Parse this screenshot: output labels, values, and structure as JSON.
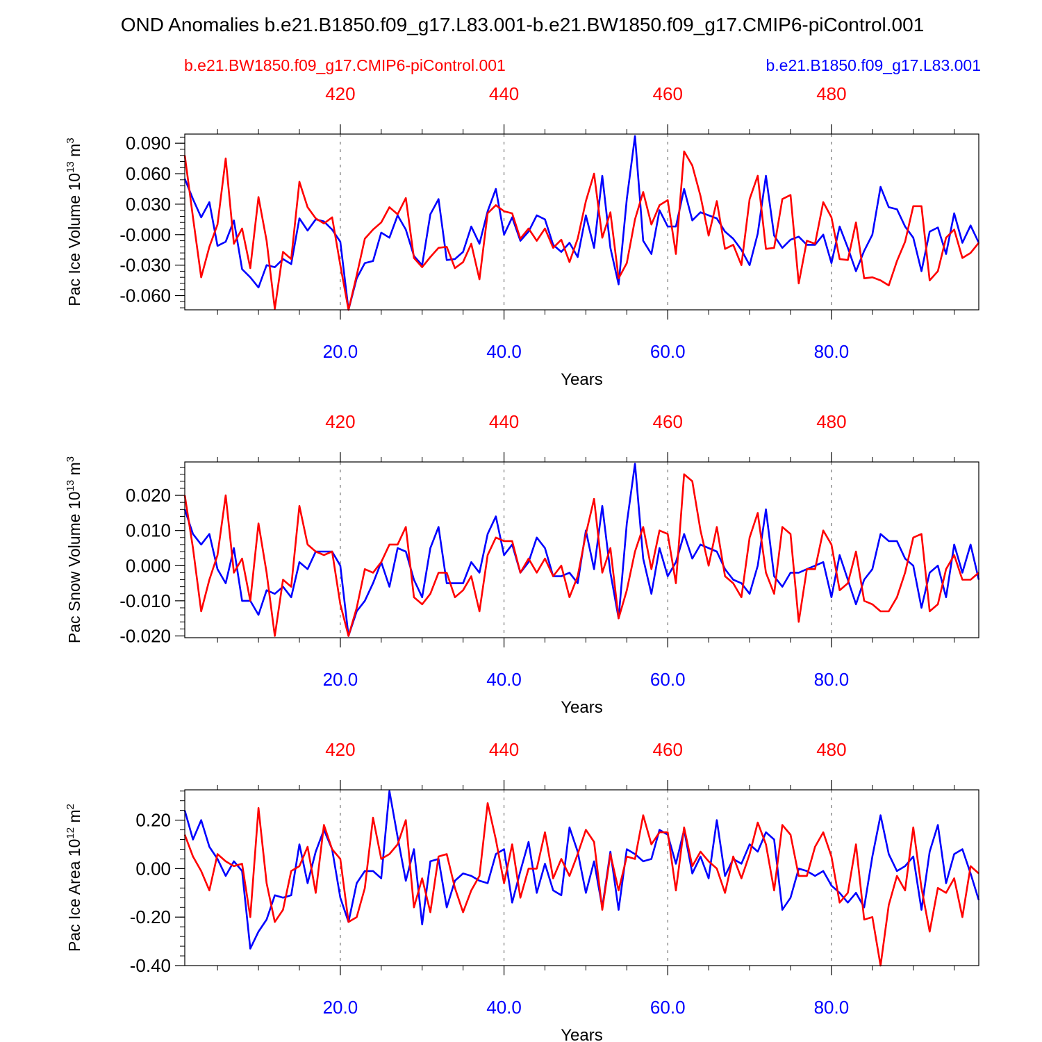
{
  "figure": {
    "title": "OND Anomalies b.e21.B1850.f09_g17.L83.001-b.e21.BW1850.f09_g17.CMIP6-piControl.001",
    "left_label": "b.e21.BW1850.f09_g17.CMIP6-piControl.001",
    "right_label": "b.e21.B1850.f09_g17.L83.001",
    "colors": {
      "blue": "#0000ff",
      "red": "#ff0000",
      "axis": "#000000"
    }
  },
  "chart_data": [
    {
      "type": "line",
      "title": "",
      "ylabel": "Pac Ice Volume",
      "yunit": {
        "pre": "10",
        "exp1": "13",
        "mid": " m",
        "exp2": "3"
      },
      "xlabel": "Years",
      "xlim": [
        1,
        98
      ],
      "ylim": [
        -0.074,
        0.099
      ],
      "x_ticks": [
        20,
        40,
        60,
        80
      ],
      "x_tick_labels": [
        "20.0",
        "40.0",
        "60.0",
        "80.0"
      ],
      "top_ticks": [
        20,
        40,
        60,
        80
      ],
      "top_tick_labels": [
        "420",
        "440",
        "460",
        "480"
      ],
      "y_ticks": [
        0.09,
        0.06,
        0.03,
        0.0,
        -0.03,
        -0.06
      ],
      "y_tick_labels": [
        "0.090",
        "0.060",
        "0.030",
        "-0.000",
        "-0.030",
        "-0.060"
      ],
      "grid": "dashed vertical at major x ticks",
      "series": [
        {
          "name": "b.e21.B1850.f09_g17.L83.001",
          "color": "#0000ff",
          "x_start": 1,
          "values": [
            0.055,
            0.035,
            0.017,
            0.032,
            -0.011,
            -0.007,
            0.014,
            -0.034,
            -0.042,
            -0.052,
            -0.03,
            -0.032,
            -0.024,
            -0.029,
            0.016,
            0.004,
            0.015,
            0.013,
            0.005,
            -0.007,
            -0.074,
            -0.043,
            -0.028,
            -0.026,
            0.002,
            -0.003,
            0.019,
            0.005,
            -0.021,
            -0.03,
            0.02,
            0.035,
            -0.025,
            -0.024,
            -0.017,
            0.008,
            -0.009,
            0.023,
            0.045,
            0.0,
            0.017,
            -0.006,
            0.003,
            0.019,
            0.015,
            -0.01,
            -0.017,
            -0.008,
            -0.022,
            0.019,
            -0.013,
            0.058,
            -0.013,
            -0.049,
            0.035,
            0.097,
            -0.006,
            -0.019,
            0.024,
            0.008,
            0.008,
            0.045,
            0.014,
            0.022,
            0.019,
            0.016,
            0.003,
            -0.004,
            -0.015,
            -0.03,
            0.001,
            0.058,
            -0.001,
            -0.013,
            -0.005,
            -0.002,
            -0.01,
            -0.01,
            0.0,
            -0.028,
            0.008,
            -0.013,
            -0.036,
            -0.016,
            0.0,
            0.047,
            0.027,
            0.025,
            0.008,
            -0.003,
            -0.036,
            0.003,
            0.007,
            -0.019,
            0.021,
            -0.008,
            0.009,
            -0.008
          ]
        },
        {
          "name": "b.e21.BW1850.f09_g17.CMIP6-piControl.001",
          "color": "#ff0000",
          "x_start": 1,
          "values": [
            0.078,
            0.017,
            -0.042,
            -0.012,
            0.01,
            0.075,
            -0.009,
            0.006,
            -0.033,
            0.037,
            -0.006,
            -0.073,
            -0.017,
            -0.024,
            0.052,
            0.027,
            0.016,
            0.011,
            0.017,
            -0.03,
            -0.074,
            -0.04,
            -0.004,
            0.005,
            0.012,
            0.027,
            0.02,
            0.036,
            -0.023,
            -0.032,
            -0.022,
            -0.013,
            -0.012,
            -0.033,
            -0.027,
            -0.009,
            -0.044,
            0.021,
            0.029,
            0.023,
            0.021,
            -0.004,
            0.006,
            -0.006,
            0.006,
            -0.013,
            -0.005,
            -0.027,
            -0.004,
            0.033,
            0.06,
            -0.003,
            0.022,
            -0.043,
            -0.028,
            0.015,
            0.042,
            0.01,
            0.029,
            0.034,
            -0.019,
            0.082,
            0.068,
            0.038,
            -0.001,
            0.033,
            -0.014,
            -0.01,
            -0.03,
            0.035,
            0.058,
            -0.014,
            -0.013,
            0.035,
            0.039,
            -0.048,
            -0.006,
            -0.009,
            0.032,
            0.017,
            -0.024,
            -0.025,
            0.012,
            -0.043,
            -0.042,
            -0.045,
            -0.05,
            -0.026,
            -0.007,
            0.028,
            0.028,
            -0.045,
            -0.036,
            -0.003,
            0.005,
            -0.023,
            -0.018,
            -0.008
          ]
        }
      ]
    },
    {
      "type": "line",
      "title": "",
      "ylabel": "Pac Snow Volume",
      "yunit": {
        "pre": "10",
        "exp1": "13",
        "mid": " m",
        "exp2": "3"
      },
      "xlabel": "Years",
      "xlim": [
        1,
        98
      ],
      "ylim": [
        -0.0205,
        0.0295
      ],
      "x_ticks": [
        20,
        40,
        60,
        80
      ],
      "x_tick_labels": [
        "20.0",
        "40.0",
        "60.0",
        "80.0"
      ],
      "top_ticks": [
        20,
        40,
        60,
        80
      ],
      "top_tick_labels": [
        "420",
        "440",
        "460",
        "480"
      ],
      "y_ticks": [
        0.02,
        0.01,
        0.0,
        -0.01,
        -0.02
      ],
      "y_tick_labels": [
        "0.020",
        "0.010",
        "0.000",
        "-0.010",
        "-0.020"
      ],
      "grid": "dashed vertical at major x ticks",
      "series": [
        {
          "name": "b.e21.B1850.f09_g17.L83.001",
          "color": "#0000ff",
          "x_start": 1,
          "values": [
            0.016,
            0.009,
            0.006,
            0.009,
            -0.001,
            -0.005,
            0.005,
            -0.01,
            -0.01,
            -0.014,
            -0.007,
            -0.008,
            -0.006,
            -0.009,
            0.001,
            -0.001,
            0.004,
            0.004,
            0.004,
            0.0,
            -0.02,
            -0.013,
            -0.01,
            -0.005,
            0.001,
            -0.006,
            0.005,
            0.004,
            -0.004,
            -0.009,
            0.005,
            0.011,
            -0.005,
            -0.005,
            -0.005,
            0.001,
            -0.002,
            0.009,
            0.014,
            0.003,
            0.006,
            -0.002,
            0.001,
            0.008,
            0.005,
            -0.003,
            -0.003,
            -0.002,
            -0.005,
            0.01,
            -0.001,
            0.017,
            -0.002,
            -0.015,
            0.012,
            0.029,
            0.002,
            -0.008,
            0.005,
            -0.003,
            0.001,
            0.009,
            0.002,
            0.006,
            0.005,
            0.004,
            -0.001,
            -0.004,
            -0.005,
            -0.008,
            0.0,
            0.016,
            -0.003,
            -0.006,
            -0.002,
            -0.002,
            -0.001,
            0.0,
            0.001,
            -0.009,
            0.003,
            -0.004,
            -0.011,
            -0.004,
            -0.001,
            0.009,
            0.007,
            0.007,
            0.002,
            0.0,
            -0.012,
            -0.002,
            0.0,
            -0.009,
            0.006,
            -0.002,
            0.006,
            -0.004
          ]
        },
        {
          "name": "b.e21.BW1850.f09_g17.CMIP6-piControl.001",
          "color": "#ff0000",
          "x_start": 1,
          "values": [
            0.02,
            0.005,
            -0.013,
            -0.004,
            0.003,
            0.02,
            -0.002,
            0.002,
            -0.01,
            0.012,
            -0.002,
            -0.02,
            -0.004,
            -0.006,
            0.017,
            0.006,
            0.004,
            0.003,
            0.004,
            -0.011,
            -0.02,
            -0.012,
            -0.001,
            -0.002,
            0.001,
            0.006,
            0.006,
            0.011,
            -0.009,
            -0.011,
            -0.008,
            -0.002,
            -0.002,
            -0.009,
            -0.007,
            -0.003,
            -0.013,
            0.003,
            0.008,
            0.007,
            0.007,
            -0.002,
            0.002,
            -0.002,
            0.002,
            -0.003,
            0.0,
            -0.009,
            -0.003,
            0.009,
            0.019,
            -0.002,
            0.005,
            -0.015,
            -0.007,
            0.004,
            0.011,
            -0.001,
            0.01,
            0.009,
            -0.005,
            0.026,
            0.024,
            0.01,
            0.0,
            0.011,
            -0.003,
            -0.005,
            -0.009,
            0.008,
            0.015,
            -0.002,
            -0.008,
            0.011,
            0.009,
            -0.016,
            -0.001,
            -0.001,
            0.01,
            0.006,
            -0.007,
            -0.005,
            0.004,
            -0.01,
            -0.011,
            -0.013,
            -0.013,
            -0.009,
            -0.002,
            0.008,
            0.009,
            -0.013,
            -0.011,
            -0.001,
            0.003,
            -0.004,
            -0.004,
            -0.002
          ]
        }
      ]
    },
    {
      "type": "line",
      "title": "",
      "ylabel": "Pac Ice Area",
      "yunit": {
        "pre": "10",
        "exp1": "12",
        "mid": " m",
        "exp2": "2"
      },
      "xlabel": "Years",
      "xlim": [
        1,
        98
      ],
      "ylim": [
        -0.4,
        0.325
      ],
      "x_ticks": [
        20,
        40,
        60,
        80
      ],
      "x_tick_labels": [
        "20.0",
        "40.0",
        "60.0",
        "80.0"
      ],
      "top_ticks": [
        20,
        40,
        60,
        80
      ],
      "top_tick_labels": [
        "420",
        "440",
        "460",
        "480"
      ],
      "y_ticks": [
        0.2,
        0.0,
        -0.2,
        -0.4
      ],
      "y_tick_labels": [
        "0.20",
        "0.00",
        "-0.20",
        "-0.40"
      ],
      "grid": "dashed vertical at major x ticks",
      "series": [
        {
          "name": "b.e21.B1850.f09_g17.L83.001",
          "color": "#0000ff",
          "x_start": 1,
          "values": [
            0.24,
            0.12,
            0.2,
            0.09,
            0.04,
            -0.03,
            0.03,
            -0.01,
            -0.33,
            -0.26,
            -0.21,
            -0.11,
            -0.12,
            -0.11,
            0.1,
            -0.06,
            0.07,
            0.16,
            0.08,
            -0.12,
            -0.22,
            -0.06,
            -0.01,
            -0.01,
            -0.04,
            0.32,
            0.13,
            -0.05,
            0.08,
            -0.23,
            0.03,
            0.04,
            -0.16,
            -0.05,
            -0.02,
            -0.03,
            -0.05,
            -0.06,
            0.06,
            0.08,
            -0.14,
            -0.01,
            0.11,
            -0.1,
            0.02,
            -0.09,
            -0.11,
            0.17,
            0.07,
            -0.1,
            0.03,
            -0.16,
            0.07,
            -0.17,
            0.08,
            0.06,
            0.03,
            0.04,
            0.16,
            0.14,
            0.02,
            0.16,
            -0.02,
            0.05,
            -0.04,
            0.2,
            -0.03,
            0.04,
            0.02,
            0.1,
            0.07,
            0.15,
            0.12,
            -0.17,
            -0.12,
            0.0,
            -0.01,
            -0.03,
            -0.01,
            -0.07,
            -0.1,
            -0.14,
            -0.1,
            -0.16,
            0.05,
            0.22,
            0.06,
            -0.01,
            0.01,
            0.05,
            -0.17,
            0.07,
            0.18,
            -0.06,
            0.06,
            0.08,
            -0.02,
            -0.13
          ]
        },
        {
          "name": "b.e21.BW1850.f09_g17.CMIP6-piControl.001",
          "color": "#ff0000",
          "x_start": 1,
          "values": [
            0.14,
            0.05,
            -0.01,
            -0.09,
            0.06,
            0.03,
            0.01,
            0.02,
            -0.2,
            0.25,
            -0.06,
            -0.22,
            -0.17,
            -0.01,
            0.01,
            0.09,
            -0.1,
            0.18,
            0.08,
            0.04,
            -0.22,
            -0.2,
            -0.08,
            0.21,
            0.04,
            0.06,
            0.1,
            0.2,
            -0.16,
            -0.04,
            -0.18,
            0.05,
            0.06,
            -0.08,
            -0.18,
            -0.09,
            -0.03,
            0.27,
            0.12,
            -0.06,
            0.1,
            -0.12,
            0.0,
            0.0,
            0.15,
            -0.04,
            0.04,
            -0.03,
            0.06,
            0.16,
            0.11,
            -0.17,
            0.06,
            -0.09,
            0.05,
            0.04,
            0.22,
            0.1,
            0.15,
            0.15,
            -0.09,
            0.17,
            0.01,
            0.07,
            0.03,
            0.0,
            -0.1,
            0.05,
            -0.04,
            0.06,
            0.19,
            0.1,
            -0.09,
            0.18,
            0.14,
            -0.03,
            -0.03,
            0.09,
            0.15,
            0.05,
            -0.14,
            -0.1,
            0.1,
            -0.21,
            -0.2,
            -0.4,
            -0.15,
            -0.03,
            -0.09,
            0.17,
            -0.08,
            -0.26,
            -0.08,
            -0.1,
            -0.04,
            -0.2,
            0.01,
            -0.02
          ]
        }
      ]
    }
  ]
}
